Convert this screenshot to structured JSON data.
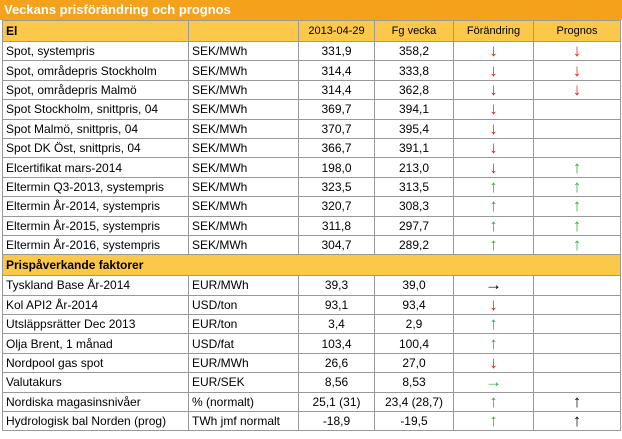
{
  "header": {
    "title": "Veckans prisförändring och prognos"
  },
  "columns": [
    "2013-04-29",
    "Fg vecka",
    "Förändring",
    "Prognos"
  ],
  "sections": [
    {
      "title": "El",
      "rows": [
        {
          "cells": [
            "Spot, systempris",
            "SEK/MWh",
            "331,9",
            "358,2"
          ],
          "change": {
            "text": "↓",
            "color": "#e02020"
          },
          "forecast": {
            "text": "↓",
            "color": "#e02020"
          }
        },
        {
          "cells": [
            "Spot, områdepris Stockholm",
            "SEK/MWh",
            "314,4",
            "333,8"
          ],
          "change": {
            "text": "↓",
            "color": "#e02020"
          },
          "forecast": {
            "text": "↓",
            "color": "#e02020"
          }
        },
        {
          "cells": [
            "Spot, områdepris Malmö",
            "SEK/MWh",
            "314,4",
            "362,8"
          ],
          "change": {
            "text": "↓",
            "color": "#e02020"
          },
          "forecast": {
            "text": "↓",
            "color": "#e02020"
          }
        },
        {
          "cells": [
            "Spot Stockholm, snittpris,  04",
            "SEK/MWh",
            "369,7",
            "394,1"
          ],
          "change": {
            "text": "↓",
            "color": "#e02020"
          },
          "forecast": null
        },
        {
          "cells": [
            "Spot Malmö, snittpris,  04",
            "SEK/MWh",
            "370,7",
            "395,4"
          ],
          "change": {
            "text": "↓",
            "color": "#e02020"
          },
          "forecast": null
        },
        {
          "cells": [
            "Spot DK Öst, snittpris,  04",
            "SEK/MWh",
            "366,7",
            "391,1"
          ],
          "change": {
            "text": "↓",
            "color": "#e02020"
          },
          "forecast": null
        },
        {
          "cells": [
            "Elcertifikat mars-2014",
            "SEK/MWh",
            "198,0",
            "213,0"
          ],
          "change": {
            "text": "↓",
            "color": "#e02020"
          },
          "forecast": {
            "text": "↑",
            "color": "#20b040"
          }
        },
        {
          "cells": [
            "Eltermin Q3-2013, systempris",
            "SEK/MWh",
            "323,5",
            "313,5"
          ],
          "change": {
            "text": "↑",
            "color": "#20b040"
          },
          "forecast": {
            "text": "↑",
            "color": "#20b040"
          }
        },
        {
          "cells": [
            "Eltermin År-2014, systempris",
            "SEK/MWh",
            "320,7",
            "308,3"
          ],
          "change": {
            "text": "↑",
            "color": "#20b040"
          },
          "forecast": {
            "text": "↑",
            "color": "#20b040"
          }
        },
        {
          "cells": [
            "Eltermin År-2015, systempris",
            "SEK/MWh",
            "311,8",
            "297,7"
          ],
          "change": {
            "text": "↑",
            "color": "#20b040"
          },
          "forecast": {
            "text": "↑",
            "color": "#20b040"
          }
        },
        {
          "cells": [
            "Eltermin År-2016, systempris",
            "SEK/MWh",
            "304,7",
            "289,2"
          ],
          "change": {
            "text": "↑",
            "color": "#20b040"
          },
          "forecast": {
            "text": "↑",
            "color": "#20b040"
          }
        }
      ]
    },
    {
      "title": "Prispåverkande faktorer",
      "rows": [
        {
          "cells": [
            "Tyskland Base År-2014",
            "EUR/MWh",
            "39,3",
            "39,0"
          ],
          "change": {
            "text": "→",
            "color": "#000000"
          },
          "forecast": null
        },
        {
          "cells": [
            "Kol API2 År-2014",
            "USD/ton",
            "93,1",
            "93,4"
          ],
          "change": {
            "text": "↓",
            "color": "#e02020"
          },
          "forecast": null
        },
        {
          "cells": [
            "Utsläppsrätter Dec 2013",
            "EUR/ton",
            "3,4",
            "2,9"
          ],
          "change": {
            "text": "↑",
            "color": "#20b040"
          },
          "forecast": null
        },
        {
          "cells": [
            "Olja Brent, 1 månad",
            "USD/fat",
            "103,4",
            "100,4"
          ],
          "change": {
            "text": "↑",
            "color": "#20b040"
          },
          "forecast": null
        },
        {
          "cells": [
            "Nordpool gas spot",
            "EUR/MWh",
            "26,6",
            "27,0"
          ],
          "change": {
            "text": "↓",
            "color": "#e02020"
          },
          "forecast": null
        },
        {
          "cells": [
            "Valutakurs",
            "EUR/SEK",
            "8,56",
            "8,53"
          ],
          "change": {
            "text": "→",
            "color": "#20b040"
          },
          "forecast": null
        },
        {
          "cells": [
            "Nordiska magasinsnivåer",
            "%  (normalt)",
            "25,1 (31)",
            "23,4 (28,7)"
          ],
          "change": {
            "text": "↑",
            "color": "#20b040"
          },
          "forecast": {
            "text": "↑",
            "color": "#000000"
          }
        },
        {
          "cells": [
            "Hydrologisk bal Norden (prog)",
            "TWh jmf normalt",
            "-18,9",
            "-19,5"
          ],
          "change": {
            "text": "↑",
            "color": "#20b040"
          },
          "forecast": {
            "text": "↑",
            "color": "#000000"
          }
        }
      ]
    }
  ]
}
